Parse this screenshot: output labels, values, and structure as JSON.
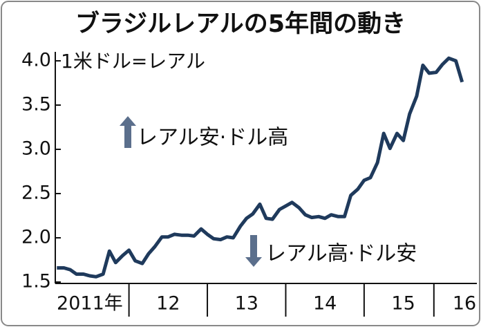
{
  "chart_data": {
    "type": "line",
    "title": "ブラジルレアルの5年間の動き",
    "unit_label": "1米ドル=レアル",
    "annotations": [
      "レアル安·ドル高",
      "レアル高·ドル安"
    ],
    "x": [
      2011.08,
      2011.17,
      2011.25,
      2011.33,
      2011.42,
      2011.5,
      2011.58,
      2011.67,
      2011.75,
      2011.83,
      2011.92,
      2012.0,
      2012.08,
      2012.17,
      2012.25,
      2012.33,
      2012.42,
      2012.5,
      2012.58,
      2012.67,
      2012.75,
      2012.83,
      2012.92,
      2013.0,
      2013.08,
      2013.17,
      2013.25,
      2013.33,
      2013.42,
      2013.5,
      2013.58,
      2013.67,
      2013.75,
      2013.83,
      2013.92,
      2014.0,
      2014.08,
      2014.17,
      2014.25,
      2014.33,
      2014.42,
      2014.5,
      2014.58,
      2014.67,
      2014.75,
      2014.83,
      2014.92,
      2015.0,
      2015.08,
      2015.17,
      2015.25,
      2015.33,
      2015.42,
      2015.5,
      2015.58,
      2015.67,
      2015.75,
      2015.83,
      2015.92,
      2016.0,
      2016.08,
      2016.17,
      2016.25
    ],
    "series": [
      {
        "color": "#1f3a5c",
        "values": [
          1.66,
          1.66,
          1.64,
          1.59,
          1.59,
          1.57,
          1.56,
          1.59,
          1.85,
          1.72,
          1.8,
          1.86,
          1.74,
          1.71,
          1.82,
          1.9,
          2.01,
          2.01,
          2.04,
          2.03,
          2.03,
          2.02,
          2.1,
          2.04,
          1.99,
          1.98,
          2.01,
          2.0,
          2.13,
          2.22,
          2.27,
          2.38,
          2.22,
          2.21,
          2.32,
          2.36,
          2.4,
          2.34,
          2.26,
          2.23,
          2.24,
          2.22,
          2.26,
          2.24,
          2.24,
          2.48,
          2.55,
          2.65,
          2.68,
          2.85,
          3.18,
          3.01,
          3.18,
          3.1,
          3.4,
          3.6,
          3.95,
          3.86,
          3.87,
          3.96,
          4.03,
          4.0,
          3.76
        ]
      }
    ],
    "xlim": [
      2011.06,
      2016.35
    ],
    "xticks": [
      {
        "value": 2011.5,
        "label": "2011年"
      },
      {
        "value": 2012.5,
        "label": "12"
      },
      {
        "value": 2013.5,
        "label": "13"
      },
      {
        "value": 2014.5,
        "label": "14"
      },
      {
        "value": 2015.5,
        "label": "15"
      },
      {
        "value": 2016.28,
        "label": "16"
      }
    ],
    "ylim": [
      1.5,
      4.0
    ],
    "yticks": [
      {
        "value": 1.5,
        "label": "1.5"
      },
      {
        "value": 2,
        "label": "2.0"
      },
      2.5,
      {
        "value": 3,
        "label": "3.0"
      },
      3.5,
      {
        "value": 4,
        "label": "4.0"
      }
    ]
  }
}
